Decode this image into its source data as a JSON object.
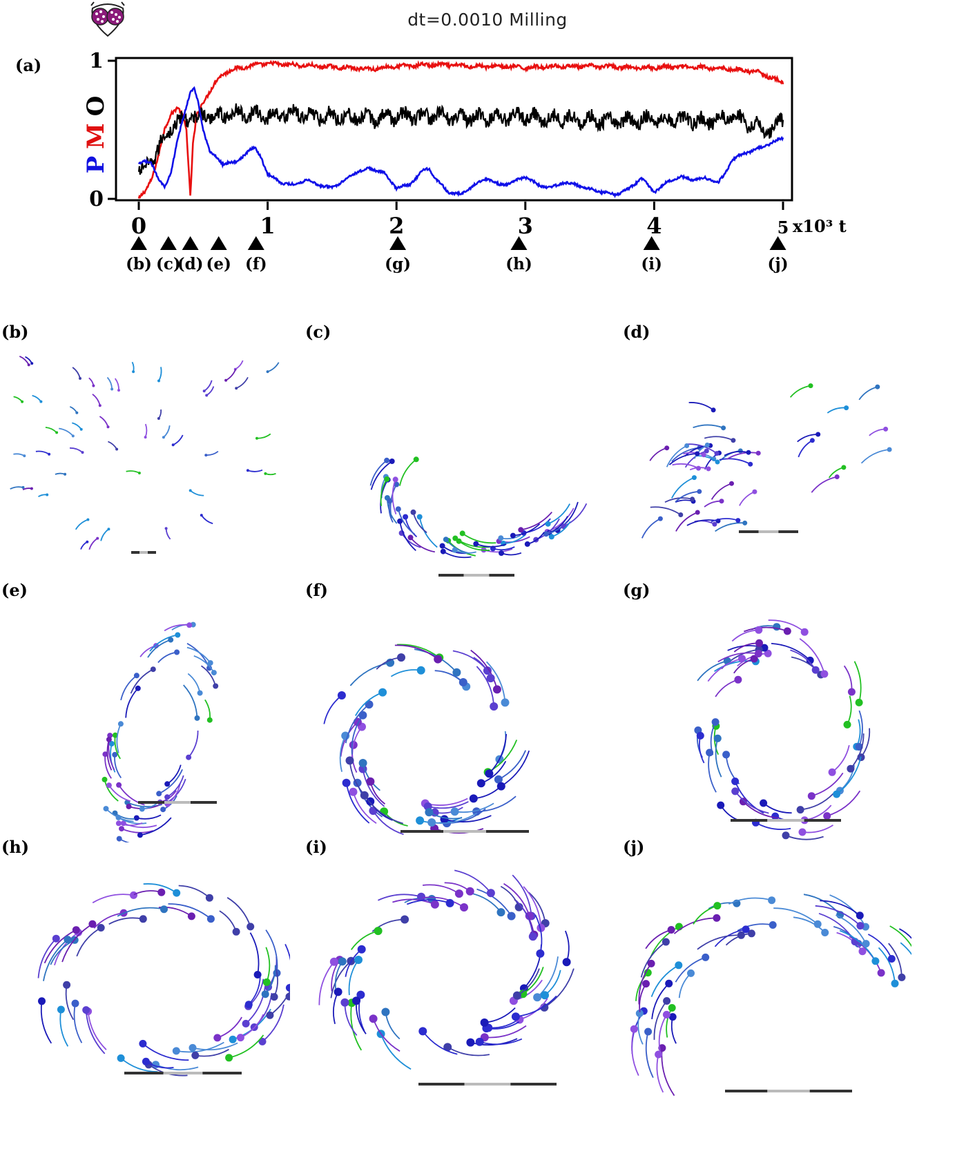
{
  "title": "dt=0.0010 Milling",
  "logo": {
    "icon": "fish-face-icon",
    "colors": {
      "eye": "#8b1a7a",
      "dot": "#ffffff",
      "outline": "#222222"
    }
  },
  "chart_data": {
    "type": "line",
    "panel_label": "(a)",
    "xlabel": "t",
    "x_unit_label": "x10³",
    "xlim": [
      0,
      5000
    ],
    "ylim": [
      0,
      1
    ],
    "x_ticks": [
      "0",
      "1",
      "2",
      "3",
      "4",
      "5"
    ],
    "y_ticks": [
      "0",
      "1"
    ],
    "ylabel_parts": [
      {
        "text": "P",
        "color": "#1010e0"
      },
      {
        "text": "M",
        "color": "#e01010"
      },
      {
        "text": "O",
        "color": "#000000"
      }
    ],
    "series": [
      {
        "name": "M",
        "color": "#e81010",
        "noise": 0.012,
        "points": [
          [
            0,
            0.0
          ],
          [
            50,
            0.05
          ],
          [
            100,
            0.15
          ],
          [
            150,
            0.3
          ],
          [
            200,
            0.5
          ],
          [
            250,
            0.62
          ],
          [
            300,
            0.66
          ],
          [
            340,
            0.6
          ],
          [
            370,
            0.5
          ],
          [
            400,
            0.02
          ],
          [
            420,
            0.4
          ],
          [
            450,
            0.6
          ],
          [
            500,
            0.7
          ],
          [
            550,
            0.78
          ],
          [
            600,
            0.85
          ],
          [
            650,
            0.9
          ],
          [
            700,
            0.93
          ],
          [
            800,
            0.95
          ],
          [
            900,
            0.97
          ],
          [
            1000,
            0.98
          ],
          [
            1200,
            0.97
          ],
          [
            1400,
            0.96
          ],
          [
            1600,
            0.95
          ],
          [
            1800,
            0.94
          ],
          [
            2000,
            0.96
          ],
          [
            2200,
            0.97
          ],
          [
            2400,
            0.97
          ],
          [
            2600,
            0.96
          ],
          [
            2800,
            0.96
          ],
          [
            3000,
            0.95
          ],
          [
            3200,
            0.96
          ],
          [
            3400,
            0.96
          ],
          [
            3600,
            0.96
          ],
          [
            3800,
            0.95
          ],
          [
            4000,
            0.95
          ],
          [
            4200,
            0.96
          ],
          [
            4400,
            0.95
          ],
          [
            4600,
            0.94
          ],
          [
            4800,
            0.92
          ],
          [
            4900,
            0.88
          ],
          [
            5000,
            0.84
          ]
        ]
      },
      {
        "name": "O",
        "color": "#000000",
        "noise": 0.05,
        "points": [
          [
            0,
            0.18
          ],
          [
            50,
            0.22
          ],
          [
            100,
            0.28
          ],
          [
            150,
            0.35
          ],
          [
            200,
            0.45
          ],
          [
            250,
            0.52
          ],
          [
            300,
            0.55
          ],
          [
            350,
            0.57
          ],
          [
            400,
            0.6
          ],
          [
            450,
            0.58
          ],
          [
            500,
            0.6
          ],
          [
            600,
            0.6
          ],
          [
            800,
            0.62
          ],
          [
            1000,
            0.6
          ],
          [
            1200,
            0.62
          ],
          [
            1400,
            0.6
          ],
          [
            1600,
            0.6
          ],
          [
            1800,
            0.58
          ],
          [
            2000,
            0.6
          ],
          [
            2200,
            0.6
          ],
          [
            2400,
            0.6
          ],
          [
            2600,
            0.58
          ],
          [
            2800,
            0.6
          ],
          [
            3000,
            0.6
          ],
          [
            3200,
            0.58
          ],
          [
            3400,
            0.58
          ],
          [
            3600,
            0.57
          ],
          [
            3800,
            0.56
          ],
          [
            4000,
            0.58
          ],
          [
            4200,
            0.58
          ],
          [
            4400,
            0.56
          ],
          [
            4600,
            0.6
          ],
          [
            4800,
            0.52
          ],
          [
            4900,
            0.5
          ],
          [
            5000,
            0.58
          ]
        ]
      },
      {
        "name": "P",
        "color": "#1010e8",
        "noise": 0.008,
        "points": [
          [
            0,
            0.25
          ],
          [
            50,
            0.27
          ],
          [
            100,
            0.26
          ],
          [
            150,
            0.15
          ],
          [
            200,
            0.08
          ],
          [
            250,
            0.2
          ],
          [
            300,
            0.42
          ],
          [
            350,
            0.6
          ],
          [
            400,
            0.78
          ],
          [
            430,
            0.8
          ],
          [
            460,
            0.7
          ],
          [
            500,
            0.5
          ],
          [
            550,
            0.35
          ],
          [
            600,
            0.3
          ],
          [
            650,
            0.25
          ],
          [
            700,
            0.27
          ],
          [
            750,
            0.26
          ],
          [
            800,
            0.3
          ],
          [
            850,
            0.35
          ],
          [
            900,
            0.37
          ],
          [
            950,
            0.3
          ],
          [
            1000,
            0.18
          ],
          [
            1100,
            0.12
          ],
          [
            1200,
            0.1
          ],
          [
            1300,
            0.14
          ],
          [
            1400,
            0.1
          ],
          [
            1500,
            0.08
          ],
          [
            1600,
            0.14
          ],
          [
            1700,
            0.2
          ],
          [
            1800,
            0.22
          ],
          [
            1900,
            0.19
          ],
          [
            2000,
            0.08
          ],
          [
            2100,
            0.1
          ],
          [
            2200,
            0.2
          ],
          [
            2250,
            0.22
          ],
          [
            2300,
            0.15
          ],
          [
            2400,
            0.05
          ],
          [
            2500,
            0.03
          ],
          [
            2600,
            0.1
          ],
          [
            2700,
            0.15
          ],
          [
            2800,
            0.1
          ],
          [
            2900,
            0.12
          ],
          [
            3000,
            0.16
          ],
          [
            3100,
            0.1
          ],
          [
            3200,
            0.08
          ],
          [
            3300,
            0.12
          ],
          [
            3400,
            0.1
          ],
          [
            3500,
            0.07
          ],
          [
            3600,
            0.05
          ],
          [
            3700,
            0.03
          ],
          [
            3800,
            0.07
          ],
          [
            3900,
            0.15
          ],
          [
            4000,
            0.05
          ],
          [
            4100,
            0.12
          ],
          [
            4200,
            0.16
          ],
          [
            4300,
            0.14
          ],
          [
            4400,
            0.15
          ],
          [
            4500,
            0.12
          ],
          [
            4550,
            0.18
          ],
          [
            4600,
            0.28
          ],
          [
            4700,
            0.33
          ],
          [
            4800,
            0.36
          ],
          [
            4900,
            0.4
          ],
          [
            5000,
            0.44
          ]
        ]
      }
    ],
    "snapshots": [
      {
        "label": "(b)",
        "t": 0
      },
      {
        "label": "(c)",
        "t": 230
      },
      {
        "label": "(d)",
        "t": 400
      },
      {
        "label": "(e)",
        "t": 620
      },
      {
        "label": "(f)",
        "t": 910
      },
      {
        "label": "(g)",
        "t": 2010
      },
      {
        "label": "(h)",
        "t": 2950
      },
      {
        "label": "(i)",
        "t": 3980
      },
      {
        "label": "(j)",
        "t": 4960
      }
    ]
  },
  "panels": [
    {
      "label": "(b)",
      "shape": "scatter-arrows",
      "n": 46,
      "seed": 11
    },
    {
      "label": "(c)",
      "shape": "partial-mill",
      "n": 44,
      "seed": 23
    },
    {
      "label": "(d)",
      "shape": "cluster-left",
      "n": 44,
      "seed": 37
    },
    {
      "label": "(e)",
      "shape": "elongated-mill",
      "n": 46,
      "seed": 41
    },
    {
      "label": "(f)",
      "shape": "double-ring",
      "n": 50,
      "seed": 53
    },
    {
      "label": "(g)",
      "shape": "ring-tall",
      "n": 48,
      "seed": 67
    },
    {
      "label": "(h)",
      "shape": "ring-wide",
      "n": 50,
      "seed": 71
    },
    {
      "label": "(i)",
      "shape": "ring-tilted",
      "n": 52,
      "seed": 83
    },
    {
      "label": "(j)",
      "shape": "arc",
      "n": 48,
      "seed": 97
    }
  ],
  "fish_palette": [
    "#1a1ab8",
    "#2c2ccf",
    "#3a5fc9",
    "#4a8ad6",
    "#2f74c0",
    "#5a3fd0",
    "#7a32c8",
    "#8f4fe0",
    "#3f3fa8",
    "#1e8fd8",
    "#22c022",
    "#6a1fb0"
  ]
}
